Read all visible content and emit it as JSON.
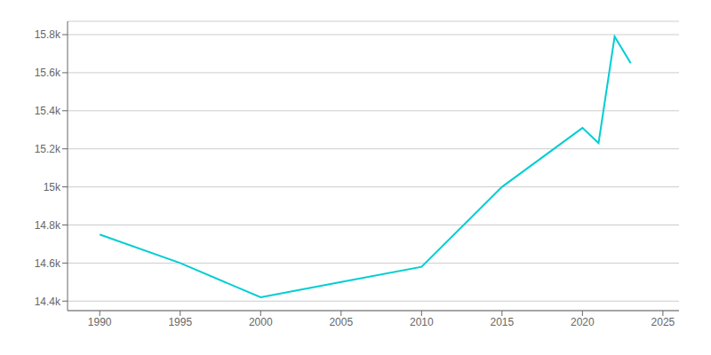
{
  "chart_data": {
    "type": "line",
    "x": [
      1990,
      1995,
      2000,
      2005,
      2010,
      2015,
      2020,
      2021,
      2022,
      2023
    ],
    "values": [
      14750,
      14600,
      14420,
      14500,
      14580,
      15000,
      15310,
      15230,
      15790,
      15650
    ],
    "color": "#00CED1",
    "xlim": [
      1988,
      2026
    ],
    "ylim": [
      14350,
      15870
    ],
    "xticks": [
      1990,
      1995,
      2000,
      2005,
      2010,
      2015,
      2020,
      2025
    ],
    "yticks": [
      {
        "value": 14400,
        "label": "14.4k"
      },
      {
        "value": 14600,
        "label": "14.6k"
      },
      {
        "value": 14800,
        "label": "14.8k"
      },
      {
        "value": 15000,
        "label": "15k"
      },
      {
        "value": 15200,
        "label": "15.2k"
      },
      {
        "value": 15400,
        "label": "15.4k"
      },
      {
        "value": 15600,
        "label": "15.6k"
      },
      {
        "value": 15800,
        "label": "15.8k"
      }
    ],
    "grid": true
  }
}
